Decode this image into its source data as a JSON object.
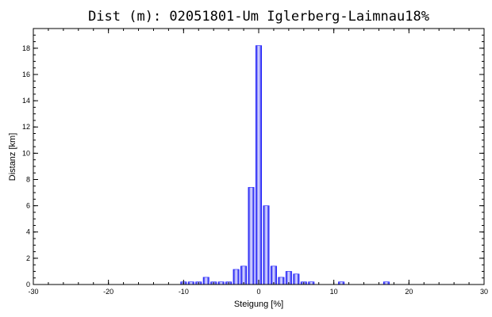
{
  "chart_data": {
    "type": "bar",
    "title": "Dist (m): 02051801-Um  Iglerberg-Laimnau18%",
    "xlabel": "Steigung [%]",
    "ylabel": "Distanz [km]",
    "xlim": [
      -30,
      30
    ],
    "ylim": [
      0,
      19.5
    ],
    "xticks": [
      -30,
      -20,
      -10,
      0,
      10,
      20,
      30
    ],
    "yticks": [
      0,
      2,
      4,
      6,
      8,
      10,
      12,
      14,
      16,
      18
    ],
    "grid": false,
    "bar_color": "#1a1aff",
    "x": [
      -10,
      -9,
      -8,
      -7,
      -6,
      -5,
      -4,
      -3,
      -2,
      -1,
      0,
      1,
      2,
      3,
      4,
      5,
      6,
      7,
      11,
      17
    ],
    "values": [
      0.2,
      0.2,
      0.2,
      0.55,
      0.2,
      0.2,
      0.2,
      1.15,
      1.4,
      7.4,
      18.2,
      6.0,
      1.4,
      0.55,
      1.0,
      0.8,
      0.2,
      0.2,
      0.2,
      0.2
    ]
  }
}
